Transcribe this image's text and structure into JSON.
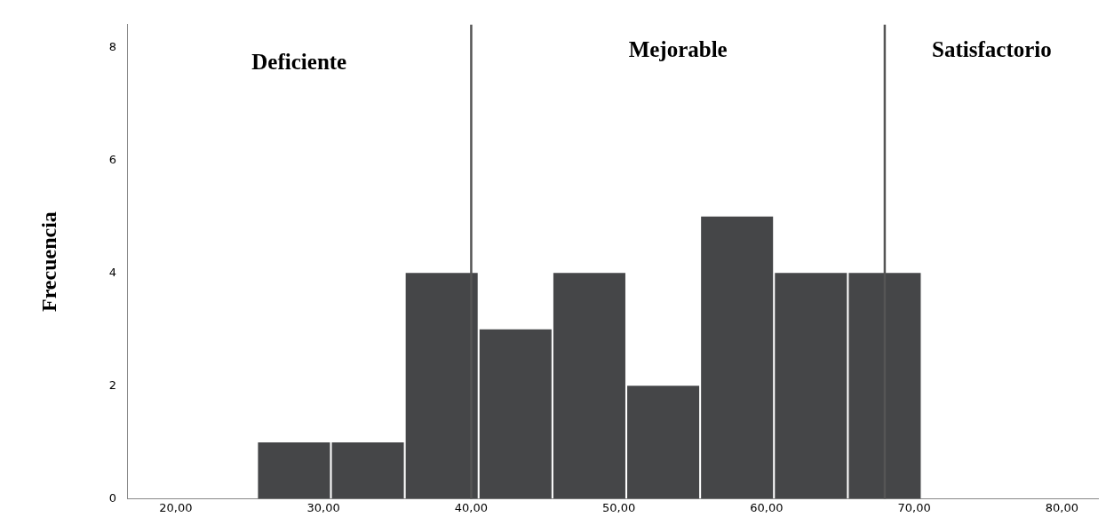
{
  "chart_data": {
    "type": "histogram",
    "ylabel": "Frecuencia",
    "bins": [
      25.5,
      30.5,
      35.5,
      40.5,
      45.5,
      50.5,
      55.5,
      60.5,
      65.5,
      70.5
    ],
    "values": [
      1,
      1,
      4,
      3,
      4,
      2,
      5,
      4,
      4
    ],
    "color": "#454648",
    "xlim": [
      16.7,
      82.5
    ],
    "xticks": [
      {
        "value": 20,
        "label": "20,00"
      },
      {
        "value": 30,
        "label": "30,00"
      },
      {
        "value": 40,
        "label": "40,00"
      },
      {
        "value": 50,
        "label": "50,00"
      },
      {
        "value": 60,
        "label": "60,00"
      },
      {
        "value": 70,
        "label": "70,00"
      },
      {
        "value": 80,
        "label": "80,00"
      }
    ],
    "ylim": [
      0,
      8.4
    ],
    "yticks": [
      0,
      2,
      4,
      6,
      8
    ],
    "grid": false,
    "ref_lines": [
      {
        "axis": "x",
        "value": 40,
        "color": "#555555"
      },
      {
        "axis": "x",
        "value": 68,
        "color": "#555555"
      }
    ],
    "annotations": [
      "Deficiente",
      "Mejorable",
      "Satisfactorio"
    ]
  }
}
